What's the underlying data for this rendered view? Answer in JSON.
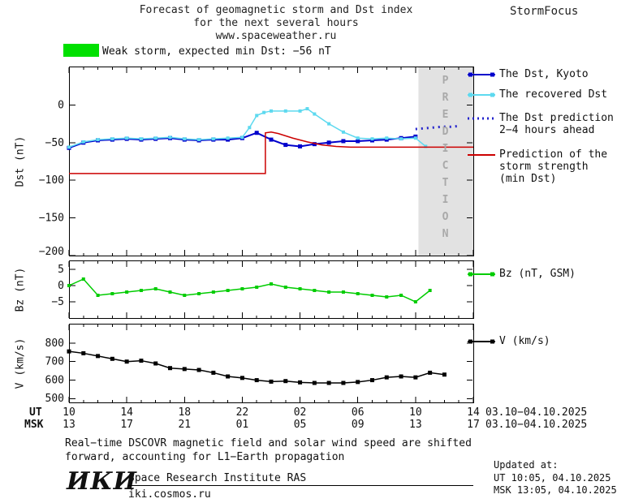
{
  "header": {
    "title": "Forecast of geomagnetic storm and Dst index\nfor the next several hours\nwww.spaceweather.ru",
    "brand": "StormFocus"
  },
  "alert": {
    "text": "Weak storm, expected min Dst: −56 nT",
    "swatch_color": "#00e000"
  },
  "colors": {
    "blue": "#0000cc",
    "cyan": "#5dd9ef",
    "red": "#cc0000",
    "green": "#00cc00",
    "black": "#000000",
    "band": "#e2e2e2",
    "frame": "#000000"
  },
  "chart_data": [
    {
      "id": "dst",
      "type": "line",
      "ylabel": "Dst (nT)",
      "ylim": [
        -200,
        50
      ],
      "ytick_vals": [
        0,
        -50,
        -100,
        -150,
        -200
      ],
      "ytick_labels": [
        "0",
        "−50",
        "−100",
        "−150",
        "−200"
      ],
      "xlim": [
        0,
        28
      ],
      "prediction_band": [
        24.2,
        28
      ],
      "prediction_label": "PREDICTION",
      "series": [
        {
          "name": "The Dst, Kyoto",
          "color": "#0000cc",
          "width": 2,
          "marker": true,
          "msize": 5,
          "x": [
            0,
            1,
            2,
            3,
            4,
            5,
            6,
            7,
            8,
            9,
            10,
            11,
            12,
            13,
            14,
            15,
            16,
            17,
            18,
            19,
            20,
            21,
            22,
            23,
            24
          ],
          "y": [
            -57,
            -50,
            -47,
            -46,
            -45,
            -46,
            -45,
            -44,
            -46,
            -47,
            -46,
            -46,
            -44,
            -37,
            -46,
            -53,
            -55,
            -52,
            -50,
            -48,
            -48,
            -47,
            -46,
            -44,
            -42
          ]
        },
        {
          "name": "The recovered Dst",
          "color": "#5dd9ef",
          "width": 1.5,
          "marker": true,
          "msize": 4,
          "x": [
            0,
            1,
            2,
            3,
            4,
            5,
            6,
            7,
            8,
            9,
            10,
            11,
            12,
            12.5,
            13,
            13.5,
            14,
            15,
            16,
            16.5,
            17,
            18,
            19,
            20,
            21,
            22,
            23,
            24,
            24.7
          ],
          "y": [
            -56,
            -49,
            -46,
            -45,
            -44,
            -45,
            -44,
            -43,
            -45,
            -46,
            -45,
            -44,
            -43,
            -30,
            -14,
            -10,
            -8,
            -8,
            -8,
            -5,
            -12,
            -25,
            -36,
            -44,
            -45,
            -44,
            -45,
            -44,
            -55
          ]
        },
        {
          "name": "The Dst prediction 2−4 hours ahead",
          "color": "#2222cc",
          "width": 3,
          "dash": "2,5",
          "marker": false,
          "x": [
            24,
            24.6,
            25.2,
            25.8,
            26.4,
            27
          ],
          "y": [
            -32,
            -31,
            -30,
            -29,
            -29,
            -28
          ]
        },
        {
          "name": "Prediction of the storm strength (min Dst)",
          "color": "#cc0000",
          "width": 1.5,
          "marker": false,
          "x": [
            0,
            13.6,
            13.6,
            14.0,
            14.5,
            15.5,
            16.5,
            17.5,
            18.5,
            19.5,
            28
          ],
          "y": [
            -91,
            -91,
            -37,
            -36,
            -38,
            -44,
            -49,
            -53,
            -55,
            -56,
            -56
          ]
        }
      ]
    },
    {
      "id": "bz",
      "type": "line",
      "ylabel": "Bz (nT)",
      "ylim": [
        -10,
        7.5
      ],
      "ytick_vals": [
        5,
        0,
        -5
      ],
      "ytick_labels": [
        "5",
        "0",
        "−5"
      ],
      "xlim": [
        0,
        28
      ],
      "series": [
        {
          "name": "Bz (nT, GSM)",
          "color": "#00cc00",
          "width": 1.5,
          "marker": true,
          "msize": 4,
          "x": [
            0,
            1,
            2,
            3,
            4,
            5,
            6,
            7,
            8,
            9,
            10,
            11,
            12,
            13,
            14,
            15,
            16,
            17,
            18,
            19,
            20,
            21,
            22,
            23,
            24,
            25
          ],
          "y": [
            0,
            2,
            -3,
            -2.5,
            -2,
            -1.5,
            -1,
            -2,
            -3,
            -2.5,
            -2,
            -1.5,
            -1,
            -0.5,
            0.5,
            -0.5,
            -1,
            -1.5,
            -2,
            -2,
            -2.5,
            -3,
            -3.5,
            -3,
            -5,
            -1.5
          ]
        }
      ]
    },
    {
      "id": "v",
      "type": "line",
      "ylabel": "V (km/s)",
      "ylim": [
        480,
        900
      ],
      "ytick_vals": [
        800,
        700,
        600,
        500
      ],
      "ytick_labels": [
        "800",
        "700",
        "600",
        "500"
      ],
      "xlim": [
        0,
        28
      ],
      "series": [
        {
          "name": "V (km/s)",
          "color": "#000000",
          "width": 1.5,
          "marker": true,
          "msize": 5,
          "x": [
            0,
            1,
            2,
            3,
            4,
            5,
            6,
            7,
            8,
            9,
            10,
            11,
            12,
            13,
            14,
            15,
            16,
            17,
            18,
            19,
            20,
            21,
            22,
            23,
            24,
            25,
            26
          ],
          "y": [
            755,
            745,
            730,
            715,
            700,
            705,
            690,
            665,
            660,
            655,
            640,
            620,
            612,
            600,
            592,
            595,
            588,
            585,
            585,
            585,
            590,
            600,
            615,
            620,
            615,
            640,
            630
          ]
        }
      ]
    }
  ],
  "xaxis": {
    "ut_label": "UT",
    "msk_label": "MSK",
    "tick_hours": [
      0,
      4,
      8,
      12,
      16,
      20,
      24,
      28
    ],
    "ut_ticks": [
      "10",
      "14",
      "18",
      "22",
      "02",
      "06",
      "10",
      "14"
    ],
    "msk_ticks": [
      "13",
      "17",
      "21",
      "01",
      "05",
      "09",
      "13",
      "17"
    ],
    "date_range_ut": "03.10−04.10.2025",
    "date_range_msk": "03.10−04.10.2025"
  },
  "legend": {
    "entries": [
      {
        "id": "dst-kyoto",
        "label": "The Dst, Kyoto",
        "color": "#0000cc",
        "style": "solid",
        "marker": true
      },
      {
        "id": "recovered-dst",
        "label": "The recovered Dst",
        "color": "#5dd9ef",
        "style": "solid",
        "marker": true
      },
      {
        "id": "dst-prediction",
        "label": "The Dst prediction\n2−4 hours ahead",
        "color": "#2222cc",
        "style": "dotted",
        "marker": false
      },
      {
        "id": "storm-strength",
        "label": "Prediction of the\nstorm strength\n(min Dst)",
        "color": "#cc0000",
        "style": "solid",
        "marker": false
      },
      {
        "id": "bz",
        "label": "Bz (nT, GSM)",
        "color": "#00cc00",
        "style": "solid",
        "marker": true
      },
      {
        "id": "v",
        "label": "V (km/s)",
        "color": "#000000",
        "style": "solid",
        "marker": true
      }
    ]
  },
  "footnote": "Real−time DSCOVR magnetic field and solar wind speed are shifted\nforward, accounting for L1−Earth propagation",
  "footer": {
    "logo": "ИКИ",
    "institute": "Space Research Institute RAS",
    "site": "iki.cosmos.ru",
    "updated_label": "Updated at:",
    "updated_ut": "UT  10:05, 04.10.2025",
    "updated_msk": "MSK 13:05, 04.10.2025"
  }
}
